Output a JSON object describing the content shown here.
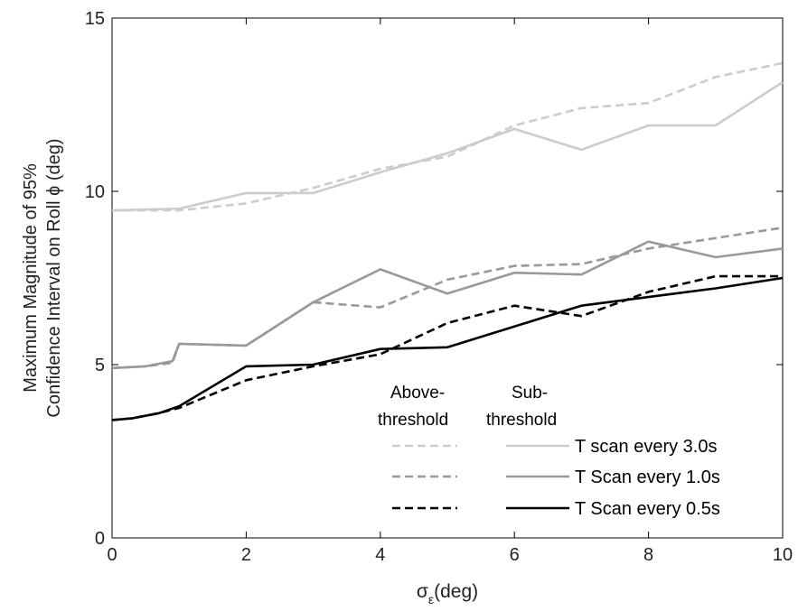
{
  "chart_data": {
    "type": "line",
    "xlabel": "σ",
    "xlabel_sub": "ε",
    "xlabel_unit": "(deg)",
    "ylabel_line1": "Maximum Magnitude of 95%",
    "ylabel_line2": "Confidence Interval on Roll  ϕ (deg)",
    "xlim": [
      0,
      10
    ],
    "ylim": [
      0,
      15
    ],
    "xticks": [
      0,
      2,
      4,
      6,
      8,
      10
    ],
    "yticks": [
      0,
      5,
      10,
      15
    ],
    "grid": false,
    "legend_position": "bottom-right",
    "legend_headers": {
      "above_line1": "Above-",
      "above_line2": "threshold",
      "sub_line1": "Sub-",
      "sub_line2": "threshold"
    },
    "legend_labels": [
      "T scan every 3.0s",
      "T Scan every 1.0s",
      "T Scan every 0.5s"
    ],
    "series": [
      {
        "name": "T scan every 3.0s",
        "group": "Sub-threshold",
        "color": "#cccccc",
        "dash": "solid",
        "x": [
          0,
          1,
          2,
          3,
          4,
          5,
          6,
          7,
          8,
          9,
          10
        ],
        "y": [
          9.45,
          9.5,
          9.95,
          9.95,
          10.55,
          11.1,
          11.8,
          11.2,
          11.9,
          11.9,
          13.15
        ]
      },
      {
        "color": "#cccccc",
        "group": "Above-threshold",
        "dash": "dashed",
        "x": [
          0,
          1,
          2,
          3,
          4,
          5,
          6,
          7,
          8,
          9,
          10
        ],
        "y": [
          9.45,
          9.45,
          9.65,
          10.1,
          10.65,
          11.0,
          11.9,
          12.4,
          12.55,
          13.3,
          13.7
        ]
      },
      {
        "name": "T Scan every 1.0s",
        "group": "Sub-threshold",
        "color": "#999999",
        "dash": "solid",
        "x": [
          0,
          0.5,
          0.9,
          1.0,
          2,
          3,
          4,
          5,
          6,
          7,
          8,
          9,
          10
        ],
        "y": [
          4.9,
          4.95,
          5.1,
          5.6,
          5.55,
          6.8,
          7.75,
          7.05,
          7.65,
          7.6,
          8.55,
          8.1,
          8.35
        ]
      },
      {
        "color": "#999999",
        "group": "Above-threshold",
        "dash": "dashed",
        "x": [
          0,
          0.5,
          0.9,
          1.0,
          2,
          3,
          4,
          5,
          6,
          7,
          8,
          9,
          10
        ],
        "y": [
          4.9,
          4.95,
          5.05,
          5.6,
          5.55,
          6.8,
          6.65,
          7.45,
          7.85,
          7.9,
          8.35,
          8.65,
          8.95
        ]
      },
      {
        "name": "T Scan every 0.5s",
        "group": "Sub-threshold",
        "color": "#000000",
        "dash": "solid",
        "x": [
          0,
          0.3,
          0.7,
          1.0,
          2,
          3,
          4,
          5,
          6,
          7,
          8,
          9,
          10
        ],
        "y": [
          3.4,
          3.45,
          3.6,
          3.8,
          4.95,
          5.0,
          5.45,
          5.5,
          6.1,
          6.7,
          6.95,
          7.2,
          7.5
        ]
      },
      {
        "color": "#000000",
        "group": "Above-threshold",
        "dash": "dashed",
        "x": [
          0,
          0.3,
          0.7,
          1.0,
          2,
          3,
          4,
          5,
          6,
          7,
          8,
          9,
          10
        ],
        "y": [
          3.4,
          3.45,
          3.6,
          3.75,
          4.55,
          4.95,
          5.3,
          6.2,
          6.7,
          6.4,
          7.1,
          7.55,
          7.55
        ]
      }
    ]
  }
}
